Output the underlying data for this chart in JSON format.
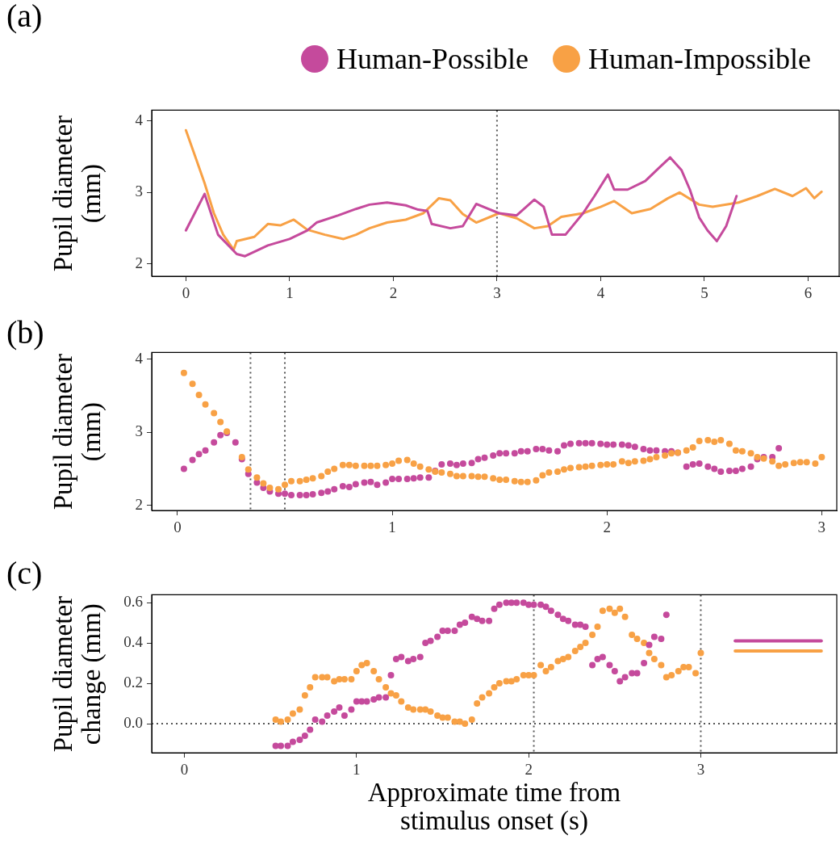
{
  "chart_data": [
    {
      "type": "line",
      "title": "(a)",
      "ylabel": "Pupil diameter (mm)",
      "xlim": [
        -0.33,
        6.3
      ],
      "ylim": [
        1.83,
        4.15
      ],
      "xticks": [
        0,
        1,
        2,
        3,
        4,
        5,
        6
      ],
      "yticks": [
        2,
        3,
        4
      ],
      "legend": "top right",
      "line_style": "solid",
      "marker": "none",
      "ref_lines": [
        {
          "axis": "x",
          "value": 3,
          "color": "#555555",
          "line_style": "dotted"
        }
      ],
      "series": [
        {
          "name": "Human-Possible",
          "color": "#c54a9c",
          "x": [
            0,
            0.18,
            0.31,
            0.49,
            0.57,
            0.79,
            1.0,
            1.17,
            1.26,
            1.47,
            1.64,
            1.77,
            1.94,
            2.12,
            2.24,
            2.33,
            2.37,
            2.55,
            2.67,
            2.8,
            3.02,
            3.19,
            3.36,
            3.45,
            3.53,
            3.66,
            3.83,
            3.94,
            4.07,
            4.13,
            4.26,
            4.43,
            4.56,
            4.67,
            4.78,
            4.86,
            4.95,
            5.03,
            5.12,
            5.21,
            5.31
          ],
          "values": [
            2.47,
            2.98,
            2.41,
            2.14,
            2.11,
            2.26,
            2.35,
            2.47,
            2.58,
            2.68,
            2.77,
            2.83,
            2.86,
            2.82,
            2.76,
            2.74,
            2.56,
            2.5,
            2.53,
            2.84,
            2.71,
            2.68,
            2.9,
            2.8,
            2.41,
            2.41,
            2.71,
            2.95,
            3.25,
            3.04,
            3.04,
            3.16,
            3.34,
            3.49,
            3.31,
            3.04,
            2.65,
            2.47,
            2.32,
            2.53,
            2.95
          ]
        },
        {
          "name": "Human-Impossible",
          "color": "#f8a145",
          "x": [
            0,
            0.1,
            0.18,
            0.27,
            0.36,
            0.46,
            0.49,
            0.66,
            0.79,
            0.91,
            1.04,
            1.17,
            1.34,
            1.52,
            1.64,
            1.77,
            1.94,
            2.12,
            2.29,
            2.44,
            2.55,
            2.67,
            2.8,
            3.02,
            3.19,
            3.36,
            3.49,
            3.62,
            3.83,
            4.0,
            4.13,
            4.3,
            4.48,
            4.65,
            4.76,
            4.95,
            5.08,
            5.33,
            5.51,
            5.68,
            5.85,
            5.98,
            6.06,
            6.13
          ],
          "values": [
            3.87,
            3.46,
            3.13,
            2.71,
            2.41,
            2.2,
            2.32,
            2.38,
            2.56,
            2.54,
            2.62,
            2.48,
            2.41,
            2.35,
            2.41,
            2.5,
            2.58,
            2.62,
            2.71,
            2.92,
            2.89,
            2.7,
            2.58,
            2.71,
            2.64,
            2.5,
            2.53,
            2.66,
            2.71,
            2.8,
            2.88,
            2.71,
            2.77,
            2.92,
            3.0,
            2.83,
            2.8,
            2.86,
            2.95,
            3.05,
            2.95,
            3.06,
            2.92,
            3.01
          ]
        }
      ]
    },
    {
      "type": "scatter",
      "title": "(b)",
      "ylabel": "Pupil diameter (mm)",
      "xlim": [
        -0.12,
        3.07
      ],
      "ylim": [
        1.93,
        4.09
      ],
      "xticks": [
        0,
        1,
        2,
        3
      ],
      "yticks": [
        2,
        3,
        4
      ],
      "marker": "circle",
      "ref_lines": [
        {
          "axis": "x",
          "value": 0.34,
          "color": "#555555",
          "line_style": "dotted"
        },
        {
          "axis": "x",
          "value": 0.5,
          "color": "#555555",
          "line_style": "dotted"
        }
      ],
      "series": [
        {
          "color": "#f8a145",
          "x": [
            0.03,
            0.07,
            0.1,
            0.13,
            0.17,
            0.2,
            0.23,
            0.3,
            0.33,
            0.37,
            0.4,
            0.43,
            0.47,
            0.5,
            0.53,
            0.57,
            0.6,
            0.63,
            0.67,
            0.7,
            0.73,
            0.77,
            0.8,
            0.83,
            0.87,
            0.9,
            0.93,
            0.97,
            1.0,
            1.03,
            1.07,
            1.1,
            1.13,
            1.17,
            1.2,
            1.23,
            1.27,
            1.3,
            1.33,
            1.37,
            1.4,
            1.43,
            1.47,
            1.5,
            1.53,
            1.57,
            1.6,
            1.63,
            1.67,
            1.7,
            1.73,
            1.77,
            1.8,
            1.83,
            1.87,
            1.9,
            1.93,
            1.97,
            2.0,
            2.03,
            2.07,
            2.1,
            2.13,
            2.17,
            2.2,
            2.23,
            2.27,
            2.3,
            2.33,
            2.37,
            2.4,
            2.43,
            2.47,
            2.5,
            2.53,
            2.57,
            2.6,
            2.63,
            2.67,
            2.7,
            2.73,
            2.77,
            2.8,
            2.83,
            2.87,
            2.9,
            2.93,
            2.97,
            3.0
          ],
          "values": [
            3.81,
            3.66,
            3.51,
            3.38,
            3.26,
            3.14,
            3.01,
            2.66,
            2.49,
            2.38,
            2.3,
            2.24,
            2.22,
            2.28,
            2.33,
            2.33,
            2.35,
            2.37,
            2.4,
            2.46,
            2.5,
            2.55,
            2.55,
            2.54,
            2.54,
            2.54,
            2.54,
            2.55,
            2.57,
            2.61,
            2.62,
            2.57,
            2.53,
            2.49,
            2.46,
            2.45,
            2.43,
            2.4,
            2.4,
            2.4,
            2.39,
            2.39,
            2.37,
            2.35,
            2.35,
            2.33,
            2.32,
            2.32,
            2.34,
            2.41,
            2.45,
            2.46,
            2.49,
            2.51,
            2.52,
            2.53,
            2.54,
            2.55,
            2.56,
            2.56,
            2.6,
            2.58,
            2.6,
            2.61,
            2.63,
            2.66,
            2.68,
            2.71,
            2.72,
            2.75,
            2.79,
            2.88,
            2.89,
            2.87,
            2.89,
            2.84,
            2.75,
            2.74,
            2.71,
            2.66,
            2.64,
            2.6,
            2.54,
            2.56,
            2.58,
            2.59,
            2.59,
            2.57,
            2.66
          ]
        },
        {
          "color": "#c54a9c",
          "x": [
            0.03,
            0.07,
            0.1,
            0.13,
            0.17,
            0.2,
            0.23,
            0.27,
            0.3,
            0.33,
            0.37,
            0.4,
            0.43,
            0.47,
            0.5,
            0.53,
            0.57,
            0.6,
            0.63,
            0.67,
            0.7,
            0.73,
            0.77,
            0.8,
            0.83,
            0.87,
            0.9,
            0.93,
            0.97,
            1.0,
            1.03,
            1.07,
            1.1,
            1.13,
            1.17,
            1.2,
            1.23,
            1.27,
            1.3,
            1.33,
            1.37,
            1.4,
            1.43,
            1.47,
            1.5,
            1.53,
            1.57,
            1.6,
            1.63,
            1.67,
            1.7,
            1.73,
            1.77,
            1.8,
            1.83,
            1.87,
            1.9,
            1.93,
            1.97,
            2.0,
            2.03,
            2.07,
            2.1,
            2.13,
            2.17,
            2.2,
            2.23,
            2.27,
            2.3,
            2.33,
            2.37,
            2.4,
            2.43,
            2.47,
            2.5,
            2.53,
            2.57,
            2.6,
            2.63,
            2.67,
            2.7,
            2.73,
            2.77,
            2.8
          ],
          "values": [
            2.5,
            2.62,
            2.7,
            2.75,
            2.86,
            2.96,
            2.99,
            2.86,
            2.63,
            2.43,
            2.31,
            2.24,
            2.19,
            2.16,
            2.16,
            2.14,
            2.14,
            2.14,
            2.15,
            2.17,
            2.19,
            2.22,
            2.26,
            2.25,
            2.29,
            2.31,
            2.32,
            2.28,
            2.31,
            2.36,
            2.36,
            2.36,
            2.37,
            2.38,
            2.38,
            2.47,
            2.56,
            2.57,
            2.55,
            2.57,
            2.58,
            2.63,
            2.65,
            2.68,
            2.71,
            2.71,
            2.71,
            2.74,
            2.74,
            2.77,
            2.77,
            2.75,
            2.74,
            2.82,
            2.84,
            2.85,
            2.85,
            2.85,
            2.84,
            2.83,
            2.83,
            2.83,
            2.82,
            2.8,
            2.77,
            2.75,
            2.75,
            2.74,
            2.74,
            2.72,
            2.53,
            2.56,
            2.57,
            2.53,
            2.5,
            2.46,
            2.47,
            2.47,
            2.5,
            2.53,
            2.63,
            2.66,
            2.66,
            2.78
          ]
        }
      ]
    },
    {
      "type": "scatter",
      "title": "(c)",
      "ylabel": "Pupil diameter change (mm)",
      "xlabel": "Approximate time from stimulus onset (s)",
      "xlim": [
        -0.19,
        3.79
      ],
      "ylim": [
        -0.144,
        0.639
      ],
      "xticks": [
        0,
        1,
        2,
        3
      ],
      "yticks": [
        {
          "value": 0,
          "label": "0.0"
        },
        0.2,
        0.4,
        0.6
      ],
      "marker": "circle",
      "ref_lines": [
        {
          "axis": "y",
          "value": 0,
          "color": "#555555",
          "line_style": "dotted"
        },
        {
          "axis": "x",
          "value": 2.03,
          "color": "#555555",
          "line_style": "dotted"
        },
        {
          "axis": "x",
          "value": 3,
          "color": "#555555",
          "line_style": "dotted"
        }
      ],
      "series": [
        {
          "color": "#c54a9c",
          "x": [
            0.53,
            0.56,
            0.6,
            0.63,
            0.67,
            0.7,
            0.73,
            0.76,
            0.8,
            0.83,
            0.87,
            0.9,
            0.93,
            0.97,
            1.0,
            1.03,
            1.06,
            1.1,
            1.13,
            1.17,
            1.2,
            1.23,
            1.26,
            1.3,
            1.33,
            1.37,
            1.4,
            1.43,
            1.47,
            1.5,
            1.53,
            1.57,
            1.6,
            1.63,
            1.67,
            1.7,
            1.73,
            1.77,
            1.8,
            1.83,
            1.87,
            1.9,
            1.93,
            1.97,
            2.0,
            2.03,
            2.07,
            2.1,
            2.13,
            2.17,
            2.2,
            2.23,
            2.27,
            2.3,
            2.33,
            2.37,
            2.4,
            2.43,
            2.47,
            2.5,
            2.53,
            2.56,
            2.6,
            2.63,
            2.67,
            2.7,
            2.73,
            2.77,
            2.8
          ],
          "values": [
            -0.11,
            -0.11,
            -0.11,
            -0.09,
            -0.08,
            -0.06,
            -0.03,
            0.02,
            0.01,
            0.04,
            0.06,
            0.08,
            0.04,
            0.07,
            0.11,
            0.11,
            0.11,
            0.12,
            0.13,
            0.13,
            0.24,
            0.32,
            0.33,
            0.31,
            0.32,
            0.33,
            0.4,
            0.41,
            0.43,
            0.46,
            0.46,
            0.46,
            0.49,
            0.5,
            0.53,
            0.52,
            0.51,
            0.51,
            0.57,
            0.59,
            0.6,
            0.6,
            0.6,
            0.6,
            0.59,
            0.59,
            0.59,
            0.58,
            0.56,
            0.54,
            0.52,
            0.51,
            0.49,
            0.49,
            0.48,
            0.29,
            0.32,
            0.33,
            0.29,
            0.26,
            0.21,
            0.23,
            0.25,
            0.25,
            0.3,
            0.39,
            0.43,
            0.42,
            0.54
          ]
        },
        {
          "color": "#f8a145",
          "x": [
            0.53,
            0.56,
            0.6,
            0.63,
            0.67,
            0.7,
            0.73,
            0.76,
            0.8,
            0.83,
            0.87,
            0.9,
            0.93,
            0.97,
            1.0,
            1.03,
            1.06,
            1.1,
            1.13,
            1.17,
            1.2,
            1.23,
            1.26,
            1.3,
            1.33,
            1.37,
            1.4,
            1.43,
            1.47,
            1.5,
            1.53,
            1.57,
            1.6,
            1.63,
            1.67,
            1.7,
            1.73,
            1.77,
            1.8,
            1.83,
            1.87,
            1.9,
            1.93,
            1.97,
            2.0,
            2.03,
            2.07,
            2.1,
            2.13,
            2.17,
            2.2,
            2.23,
            2.27,
            2.3,
            2.33,
            2.37,
            2.4,
            2.43,
            2.47,
            2.5,
            2.53,
            2.56,
            2.6,
            2.63,
            2.67,
            2.7,
            2.73,
            2.77,
            2.8,
            2.83,
            2.87,
            2.9,
            2.93,
            2.97,
            3.0
          ],
          "values": [
            0.02,
            0.01,
            0.02,
            0.05,
            0.07,
            0.14,
            0.18,
            0.23,
            0.23,
            0.23,
            0.21,
            0.22,
            0.22,
            0.22,
            0.26,
            0.29,
            0.3,
            0.26,
            0.22,
            0.18,
            0.15,
            0.14,
            0.11,
            0.08,
            0.07,
            0.07,
            0.07,
            0.06,
            0.04,
            0.03,
            0.03,
            0.01,
            0.01,
            0,
            0.02,
            0.1,
            0.13,
            0.15,
            0.18,
            0.2,
            0.21,
            0.21,
            0.22,
            0.24,
            0.24,
            0.24,
            0.29,
            0.26,
            0.28,
            0.31,
            0.32,
            0.33,
            0.36,
            0.38,
            0.4,
            0.44,
            0.48,
            0.56,
            0.57,
            0.55,
            0.57,
            0.53,
            0.44,
            0.42,
            0.4,
            0.35,
            0.32,
            0.29,
            0.23,
            0.24,
            0.26,
            0.28,
            0.28,
            0.25,
            0.35
          ]
        },
        {
          "type": "line",
          "marker": "none",
          "color": "#c54a9c",
          "x": [
            3.2,
            3.7
          ],
          "values": [
            0.41,
            0.41
          ]
        },
        {
          "type": "line",
          "marker": "none",
          "color": "#f8a145",
          "x": [
            3.2,
            3.7
          ],
          "values": [
            0.36,
            0.36
          ]
        }
      ]
    }
  ]
}
